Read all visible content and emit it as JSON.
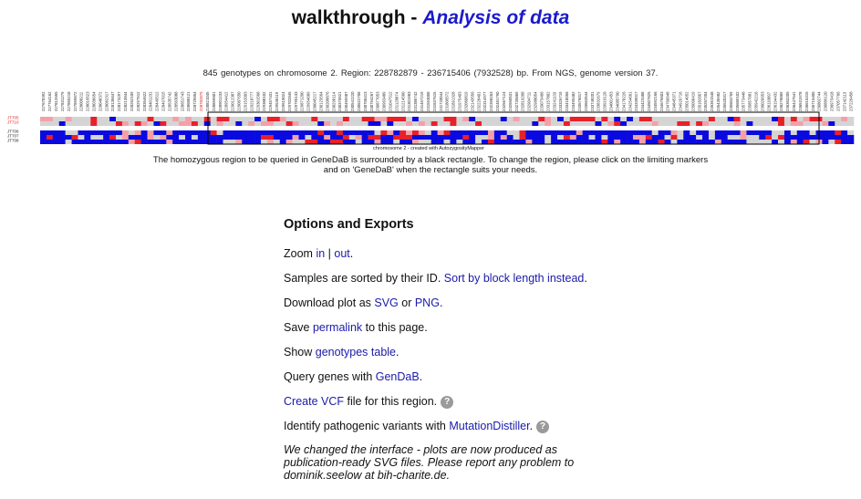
{
  "header": {
    "title_main": "walkthrough - ",
    "title_accent": "Analysis of data"
  },
  "info_line": "845 genotypes on chromosome 2.    Region: 228782879 - 236715406 (7932528) bp.    From NGS, genome version 37.",
  "plot": {
    "samples": [
      "JT705",
      "JT710",
      "JT706",
      "JT707",
      "JT708"
    ],
    "highlighted_samples": [
      "JT705",
      "JT710"
    ],
    "region_label": "chromosome 2 - created with AutozygosityMapper",
    "marker_positions": [
      "227670392",
      "227764162",
      "227812655",
      "227831279",
      "227855218",
      "227899872",
      "228008211",
      "228016523",
      "228038954",
      "228048372",
      "228082317",
      "228135847",
      "228173297",
      "228213844",
      "228262109",
      "228297512",
      "228354622",
      "228401231",
      "228449512",
      "228497015",
      "228535742",
      "228563088",
      "228651743",
      "228688121",
      "228729854",
      "228782879",
      "228821045",
      "228859601",
      "228901233",
      "228954412",
      "229012387",
      "229087650",
      "229152003",
      "229218777",
      "229301568",
      "229388102",
      "229457431",
      "229536119",
      "229615024",
      "229702846",
      "229795133",
      "229871200",
      "229954689",
      "230045217",
      "230123564",
      "230208876",
      "230290114",
      "230376521",
      "230459987",
      "230541220",
      "230622708",
      "230708413",
      "230794267",
      "230877053",
      "230963489",
      "231047512",
      "231128874",
      "231214560",
      "231301983",
      "231385742",
      "231467219",
      "231553008",
      "231637615",
      "231720044",
      "231806572",
      "231891328",
      "231975403",
      "232060819",
      "232143556",
      "232228401",
      "232314977",
      "232398263",
      "232481790",
      "232567124",
      "232650531",
      "232735869",
      "232819208",
      "232904711",
      "232988054",
      "233073466",
      "233157802",
      "233241133",
      "233326719",
      "233410058",
      "233495482",
      "233579017",
      "233663544",
      "233748201",
      "233832679",
      "233916128",
      "234001453",
      "234085790",
      "234170226",
      "234254661",
      "234339017",
      "234423488",
      "234507825",
      "234592166",
      "234676503",
      "234760948",
      "234845371",
      "234929716",
      "235014052",
      "235098419",
      "235182867",
      "235267204",
      "235351548",
      "235435982",
      "235520317",
      "235604759",
      "235689102",
      "235773448",
      "235857881",
      "235942216",
      "236026653",
      "236110097",
      "236194432",
      "236278869",
      "236363205",
      "236447541",
      "236531978",
      "236616315",
      "236715406",
      "236802744",
      "236889120",
      "236973418",
      "237057766",
      "237142113",
      "237226458"
    ]
  },
  "caption": {
    "line1": "The homozygous region to be queried in GeneDaB is surrounded by a black rectangle. To change the region, please click on the limiting markers",
    "line2": "and on 'GeneDaB' when the rectangle suits your needs."
  },
  "options": {
    "heading": "Options and Exports",
    "zoom_prefix": "Zoom ",
    "zoom_in": "in",
    "zoom_sep": " | ",
    "zoom_out": "out",
    "zoom_suffix": ".",
    "sort_prefix": "Samples are sorted by their ID. ",
    "sort_link": "Sort by block length instead",
    "sort_suffix": ".",
    "download_prefix": "Download plot as ",
    "download_svg": "SVG",
    "download_or": " or ",
    "download_png": "PNG",
    "download_suffix": ".",
    "save_prefix": "Save ",
    "save_link": "permalink",
    "save_suffix": " to this page.",
    "show_prefix": "Show ",
    "show_link": "genotypes table",
    "show_suffix": ".",
    "query_prefix": "Query genes with ",
    "query_link": "GenDaB",
    "query_suffix": ".",
    "vcf_link": "Create VCF",
    "vcf_suffix": " file for this region.",
    "identify_prefix": "Identify pathogenic variants with ",
    "identify_link": "MutationDistiller",
    "identify_suffix": ".",
    "help_glyph": "?",
    "note": "We changed the interface - plots are now produced as publication-ready SVG files. Please report any problem to dominik.seelow at bih-charite.de."
  },
  "colors": {
    "accent": "#1a1acc",
    "link": "#1a1aaa",
    "homozygous_strong": "#e8202a",
    "homozygous_weak": "#f4a0a8",
    "heterozygous": "#0a0ae0",
    "no_call": "#d4d4d4",
    "highlight_label": "#dd2222"
  }
}
